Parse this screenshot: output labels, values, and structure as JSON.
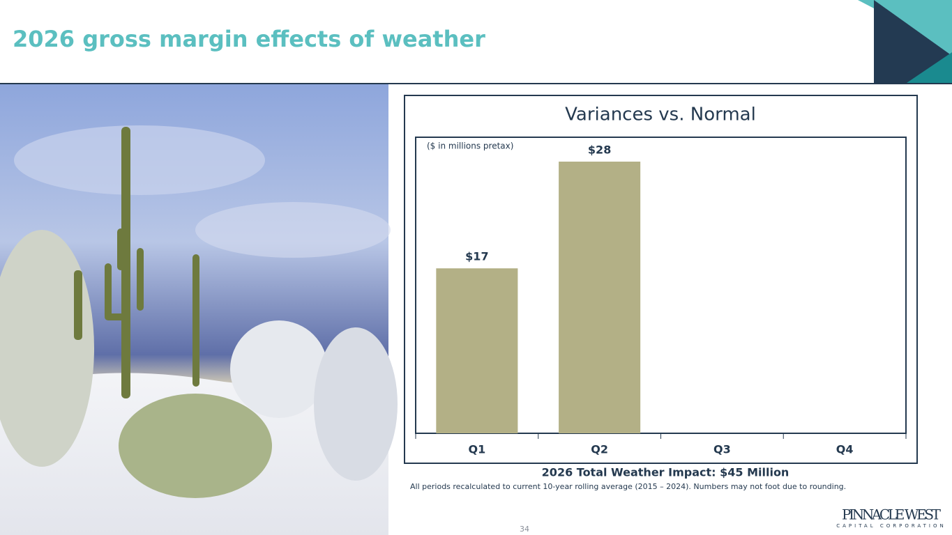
{
  "header": {
    "title": "2026 gross margin effects of weather"
  },
  "chart_data": {
    "type": "bar",
    "title": "Variances vs. Normal",
    "subtitle": "($ in millions pretax)",
    "categories": [
      "Q1",
      "Q2",
      "Q3",
      "Q4"
    ],
    "values": [
      17,
      28,
      null,
      null
    ],
    "value_labels": [
      "$17",
      "$28",
      null,
      null
    ],
    "color": "#b3b086",
    "summary": "2026 Total Weather Impact: $45 Million",
    "note": "All periods recalculated to current 10-year rolling average (2015 – 2024). Numbers may not foot due to rounding."
  },
  "footer": {
    "page": "34",
    "logo": {
      "name": "PINNACLE WEST",
      "tagline": "CAPITAL CORPORATION"
    }
  }
}
